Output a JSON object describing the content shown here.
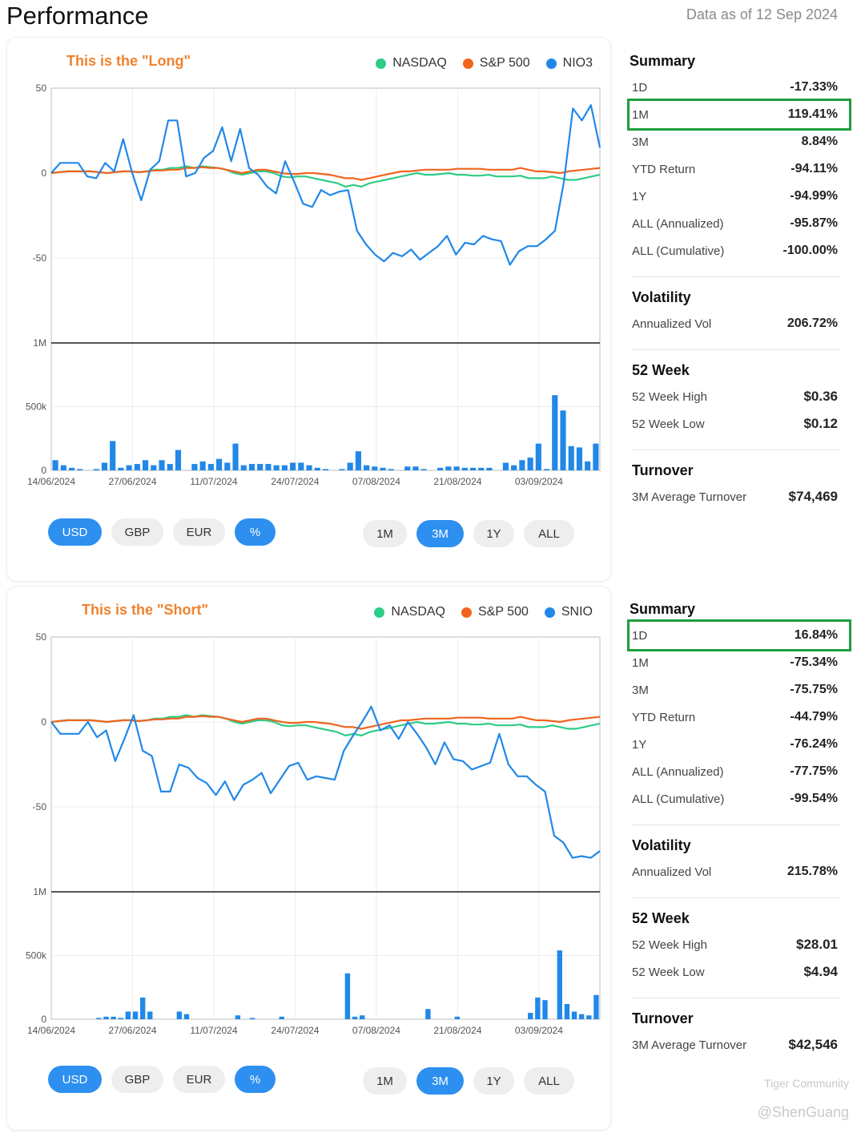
{
  "page": {
    "title": "Performance",
    "data_as_of": "Data as of 12 Sep 2024"
  },
  "colors": {
    "nasdaq": "#2ecc87",
    "sp500": "#f0641e",
    "stock": "#2188e8",
    "title": "#f0822e",
    "active": "#2d8ff0",
    "highlight": "#1e9e3e"
  },
  "currency_buttons": [
    "USD",
    "GBP",
    "EUR",
    "%"
  ],
  "range_buttons": [
    "1M",
    "3M",
    "1Y",
    "ALL"
  ],
  "panels": [
    {
      "title": "This is the \"Long\"",
      "legend": [
        "NASDAQ",
        "S&P 500",
        "NIO3"
      ],
      "summary_heading": "Summary",
      "summary": [
        {
          "label": "1D",
          "value": "-17.33%"
        },
        {
          "label": "1M",
          "value": "119.41%",
          "highlighted": true
        },
        {
          "label": "3M",
          "value": "8.84%"
        },
        {
          "label": "YTD Return",
          "value": "-94.11%"
        },
        {
          "label": "1Y",
          "value": "-94.99%"
        },
        {
          "label": "ALL (Annualized)",
          "value": "-95.87%"
        },
        {
          "label": "ALL (Cumulative)",
          "value": "-100.00%"
        }
      ],
      "volatility_heading": "Volatility",
      "volatility": {
        "label": "Annualized Vol",
        "value": "206.72%"
      },
      "week52_heading": "52 Week",
      "week52_high": {
        "label": "52 Week High",
        "value": "$0.36"
      },
      "week52_low": {
        "label": "52 Week Low",
        "value": "$0.12"
      },
      "turnover_heading": "Turnover",
      "turnover": {
        "label": "3M Average Turnover",
        "value": "$74,469"
      }
    },
    {
      "title": "This is the \"Short\"",
      "legend": [
        "NASDAQ",
        "S&P 500",
        "SNIO"
      ],
      "summary_heading": "Summary",
      "summary": [
        {
          "label": "1D",
          "value": "16.84%",
          "highlighted": true
        },
        {
          "label": "1M",
          "value": "-75.34%"
        },
        {
          "label": "3M",
          "value": "-75.75%"
        },
        {
          "label": "YTD Return",
          "value": "-44.79%"
        },
        {
          "label": "1Y",
          "value": "-76.24%"
        },
        {
          "label": "ALL (Annualized)",
          "value": "-77.75%"
        },
        {
          "label": "ALL (Cumulative)",
          "value": "-99.54%"
        }
      ],
      "volatility_heading": "Volatility",
      "volatility": {
        "label": "Annualized Vol",
        "value": "215.78%"
      },
      "week52_heading": "52 Week",
      "week52_high": {
        "label": "52 Week High",
        "value": "$28.01"
      },
      "week52_low": {
        "label": "52 Week Low",
        "value": "$4.94"
      },
      "turnover_heading": "Turnover",
      "turnover": {
        "label": "3M Average Turnover",
        "value": "$42,546"
      }
    }
  ],
  "chart_data": [
    {
      "type": "line",
      "x_ticks": [
        "14/06/2024",
        "27/06/2024",
        "11/07/2024",
        "24/07/2024",
        "07/08/2024",
        "21/08/2024",
        "03/09/2024"
      ],
      "y_ticks": [
        "50",
        "0",
        "-50"
      ],
      "ylim": [
        -100,
        50
      ],
      "volume_ticks": [
        "1M",
        "500k",
        "0"
      ],
      "volume_max": 1000000,
      "series": [
        {
          "name": "NASDAQ",
          "values": [
            0,
            0.5,
            1,
            1,
            1,
            1,
            0.5,
            0,
            0.5,
            1,
            1,
            0.5,
            1,
            2,
            2,
            3,
            3,
            4,
            3,
            4,
            3.5,
            3,
            2,
            0,
            -1,
            0,
            1,
            1,
            0,
            -2,
            -2.5,
            -2,
            -2,
            -3,
            -4,
            -5,
            -6,
            -8,
            -7,
            -8,
            -6,
            -5,
            -4,
            -3,
            -2,
            -1,
            0,
            -1,
            -1,
            -0.5,
            0,
            -1,
            -1,
            -1.5,
            -1.5,
            -1,
            -2,
            -2,
            -2,
            -1.5,
            -3,
            -3,
            -3,
            -2,
            -3,
            -4,
            -4,
            -3,
            -2,
            -1
          ]
        },
        {
          "name": "S&P 500",
          "values": [
            0,
            0.5,
            1,
            1,
            1,
            1,
            0.5,
            0,
            0.5,
            1,
            1,
            0.5,
            1,
            1.5,
            1.5,
            2,
            2,
            3,
            3,
            3.5,
            3,
            3,
            2,
            1,
            0,
            1,
            2,
            2,
            1,
            0,
            -0.5,
            -0.5,
            0,
            0,
            -0.5,
            -1,
            -2,
            -3,
            -3,
            -4,
            -3,
            -2,
            -1,
            0,
            1,
            1,
            1.5,
            2,
            2,
            2,
            2,
            2.5,
            2.5,
            2.5,
            2.5,
            2,
            2,
            2,
            2,
            3,
            2,
            1,
            1,
            0.5,
            0,
            1,
            1.5,
            2,
            2.5,
            3
          ]
        },
        {
          "name": "NIO3",
          "values": [
            0,
            6,
            6,
            6,
            -2,
            -3,
            6,
            1,
            20,
            0,
            -16,
            2,
            7,
            31,
            31,
            -2,
            0,
            9,
            13,
            27,
            7,
            26,
            3,
            -1,
            -8,
            -12,
            7,
            -5,
            -18,
            -20,
            -10,
            -13,
            -11,
            -10,
            -34,
            -42,
            -48,
            -52,
            -47,
            -49,
            -45,
            -51,
            -47,
            -43,
            -37,
            -48,
            -41,
            -42,
            -37,
            -39,
            -40,
            -54,
            -46,
            -43,
            -43,
            -39,
            -34,
            -5,
            38,
            31,
            40,
            15
          ]
        }
      ],
      "volume": [
        80000,
        40000,
        20000,
        10000,
        0,
        10000,
        60000,
        230000,
        20000,
        40000,
        50000,
        80000,
        40000,
        80000,
        50000,
        160000,
        0,
        50000,
        70000,
        50000,
        90000,
        60000,
        210000,
        40000,
        50000,
        50000,
        50000,
        40000,
        40000,
        60000,
        60000,
        40000,
        20000,
        10000,
        0,
        10000,
        60000,
        150000,
        40000,
        30000,
        20000,
        10000,
        0,
        30000,
        30000,
        10000,
        0,
        20000,
        30000,
        30000,
        20000,
        20000,
        20000,
        20000,
        0,
        60000,
        40000,
        80000,
        100000,
        210000,
        10000,
        590000,
        470000,
        190000,
        180000,
        70000,
        210000
      ]
    },
    {
      "type": "line",
      "x_ticks": [
        "14/06/2024",
        "27/06/2024",
        "11/07/2024",
        "24/07/2024",
        "07/08/2024",
        "21/08/2024",
        "03/09/2024"
      ],
      "y_ticks": [
        "50",
        "0",
        "-50"
      ],
      "ylim": [
        -100,
        50
      ],
      "volume_ticks": [
        "1M",
        "500k",
        "0"
      ],
      "volume_max": 1000000,
      "series": [
        {
          "name": "NASDAQ",
          "values": [
            0,
            0.5,
            1,
            1,
            1,
            1,
            0.5,
            0,
            0.5,
            1,
            1,
            0.5,
            1,
            2,
            2,
            3,
            3,
            4,
            3,
            4,
            3.5,
            3,
            2,
            0,
            -1,
            0,
            1,
            1,
            0,
            -2,
            -2.5,
            -2,
            -2,
            -3,
            -4,
            -5,
            -6,
            -8,
            -7,
            -8,
            -6,
            -5,
            -4,
            -3,
            -2,
            -1,
            0,
            -1,
            -1,
            -0.5,
            0,
            -1,
            -1,
            -1.5,
            -1.5,
            -1,
            -2,
            -2,
            -2,
            -1.5,
            -3,
            -3,
            -3,
            -2,
            -3,
            -4,
            -4,
            -3,
            -2,
            -1
          ]
        },
        {
          "name": "S&P 500",
          "values": [
            0,
            0.5,
            1,
            1,
            1,
            1,
            0.5,
            0,
            0.5,
            1,
            1,
            0.5,
            1,
            1.5,
            1.5,
            2,
            2,
            3,
            3,
            3.5,
            3,
            3,
            2,
            1,
            0,
            1,
            2,
            2,
            1,
            0,
            -0.5,
            -0.5,
            0,
            0,
            -0.5,
            -1,
            -2,
            -3,
            -3,
            -4,
            -3,
            -2,
            -1,
            0,
            1,
            1,
            1.5,
            2,
            2,
            2,
            2,
            2.5,
            2.5,
            2.5,
            2.5,
            2,
            2,
            2,
            2,
            3,
            2,
            1,
            1,
            0.5,
            0,
            1,
            1.5,
            2,
            2.5,
            3
          ]
        },
        {
          "name": "SNIO",
          "values": [
            0,
            -7,
            -7,
            -7,
            0,
            -9,
            -5,
            -23,
            -10,
            4,
            -17,
            -20,
            -41,
            -41,
            -25,
            -27,
            -33,
            -36,
            -43,
            -35,
            -46,
            -37,
            -34,
            -30,
            -42,
            -34,
            -26,
            -24,
            -34,
            -32,
            -33,
            -34,
            -17,
            -8,
            0,
            9,
            -5,
            -2,
            -10,
            0,
            -7,
            -15,
            -25,
            -12,
            -22,
            -23,
            -28,
            -26,
            -24,
            -7,
            -25,
            -32,
            -32,
            -37,
            -41,
            -67,
            -71,
            -80,
            -79,
            -80,
            -76
          ]
        }
      ],
      "volume": [
        0,
        0,
        0,
        0,
        0,
        0,
        10000,
        20000,
        20000,
        10000,
        60000,
        60000,
        170000,
        60000,
        0,
        0,
        0,
        60000,
        40000,
        0,
        0,
        0,
        0,
        0,
        0,
        30000,
        0,
        10000,
        0,
        0,
        0,
        20000,
        0,
        0,
        0,
        0,
        0,
        0,
        0,
        0,
        360000,
        20000,
        30000,
        0,
        0,
        0,
        0,
        0,
        0,
        0,
        0,
        80000,
        0,
        0,
        0,
        20000,
        0,
        0,
        0,
        0,
        0,
        0,
        0,
        0,
        0,
        50000,
        170000,
        150000,
        0,
        540000,
        120000,
        60000,
        40000,
        30000,
        190000
      ]
    }
  ],
  "watermark": {
    "brand": "Tiger Community",
    "author": "@ShenGuang"
  }
}
